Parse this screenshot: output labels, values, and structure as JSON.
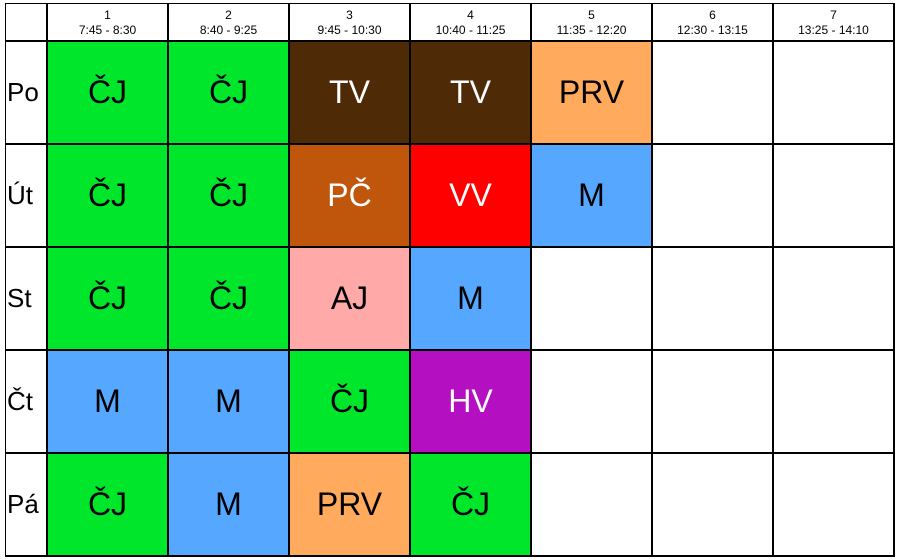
{
  "periods": [
    {
      "num": "1",
      "time": "7:45 - 8:30"
    },
    {
      "num": "2",
      "time": "8:40 - 9:25"
    },
    {
      "num": "3",
      "time": "9:45 - 10:30"
    },
    {
      "num": "4",
      "time": "10:40 - 11:25"
    },
    {
      "num": "5",
      "time": "11:35 - 12:20"
    },
    {
      "num": "6",
      "time": "12:30 - 13:15"
    },
    {
      "num": "7",
      "time": "13:25 - 14:10"
    }
  ],
  "subject_colors": {
    "ČJ": "#00e62a",
    "TV": "#4f2a06",
    "PRV": "#ffaa5c",
    "PČ": "#c0560c",
    "VV": "#ff0000",
    "M": "#55a7ff",
    "AJ": "#ffa9a9",
    "HV": "#b40fc0"
  },
  "light_text_subjects": [
    "TV",
    "PČ",
    "VV",
    "HV"
  ],
  "days": [
    {
      "name": "Po",
      "lessons": [
        "ČJ",
        "ČJ",
        "TV",
        "TV",
        "PRV",
        "",
        ""
      ]
    },
    {
      "name": "Út",
      "lessons": [
        "ČJ",
        "ČJ",
        "PČ",
        "VV",
        "M",
        "",
        ""
      ]
    },
    {
      "name": "St",
      "lessons": [
        "ČJ",
        "ČJ",
        "AJ",
        "M",
        "",
        "",
        ""
      ]
    },
    {
      "name": "Čt",
      "lessons": [
        "M",
        "M",
        "ČJ",
        "HV",
        "",
        "",
        ""
      ]
    },
    {
      "name": "Pá",
      "lessons": [
        "ČJ",
        "M",
        "PRV",
        "ČJ",
        "",
        "",
        ""
      ]
    }
  ]
}
